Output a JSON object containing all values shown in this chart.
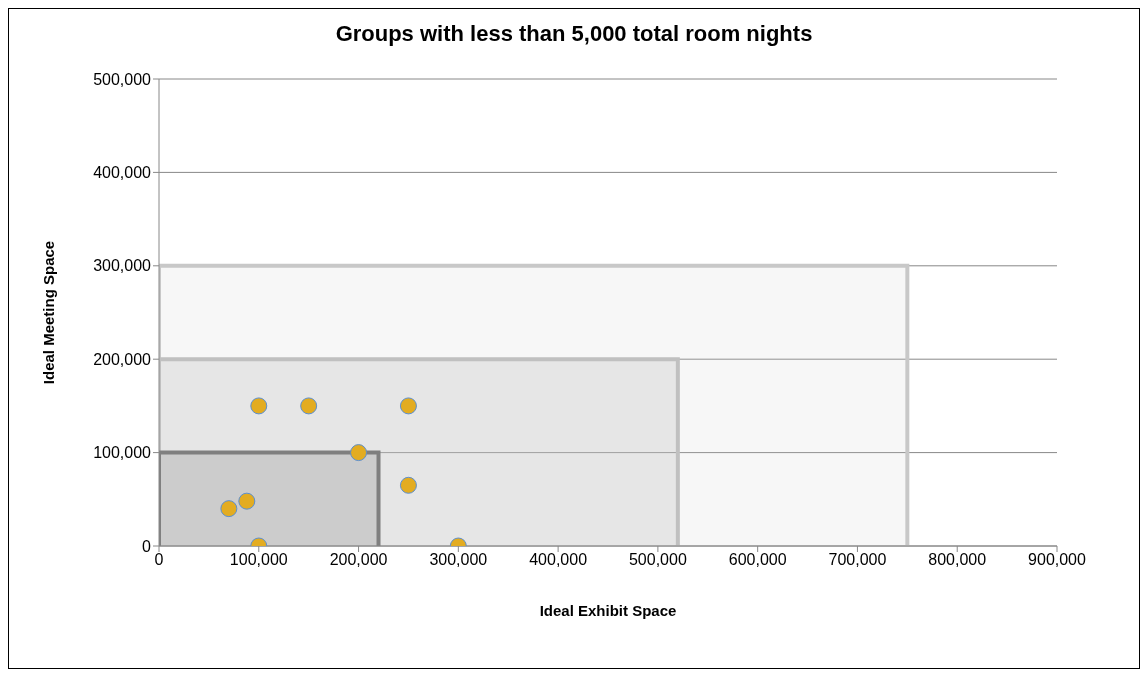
{
  "chart_data": {
    "type": "scatter",
    "title": "Groups with less than 5,000 total room nights",
    "xlabel": "Ideal Exhibit Space",
    "ylabel": "Ideal Meeting Space",
    "xlim": [
      0,
      900000
    ],
    "xticks": [
      {
        "value": 0,
        "label": "0"
      },
      {
        "value": 100000,
        "label": "100,000"
      },
      {
        "value": 200000,
        "label": "200,000"
      },
      {
        "value": 300000,
        "label": "300,000"
      },
      {
        "value": 400000,
        "label": "400,000"
      },
      {
        "value": 500000,
        "label": "500,000"
      },
      {
        "value": 600000,
        "label": "600,000"
      },
      {
        "value": 700000,
        "label": "700,000"
      },
      {
        "value": 800000,
        "label": "800,000"
      },
      {
        "value": 900000,
        "label": "900,000"
      }
    ],
    "ylim": [
      0,
      500000
    ],
    "yticks": [
      {
        "value": 0,
        "label": "0"
      },
      {
        "value": 100000,
        "label": "100,000"
      },
      {
        "value": 200000,
        "label": "200,000"
      },
      {
        "value": 300000,
        "label": "300,000"
      },
      {
        "value": 400000,
        "label": "400,000"
      },
      {
        "value": 500000,
        "label": "500,000"
      }
    ],
    "grid": "y",
    "series": [
      {
        "type": "area",
        "marker": "none",
        "color": "#c8c8c8",
        "x": [
          0,
          0,
          750000,
          750000
        ],
        "values": [
          0,
          300000,
          300000,
          0
        ]
      },
      {
        "type": "area",
        "marker": "none",
        "color": "#c0c0c0",
        "x": [
          0,
          0,
          520000,
          520000
        ],
        "values": [
          0,
          200000,
          200000,
          0
        ]
      },
      {
        "type": "area",
        "marker": "none",
        "color": "#7f7f7f",
        "x": [
          0,
          0,
          220000,
          220000
        ],
        "values": [
          0,
          100000,
          100000,
          0
        ]
      },
      {
        "marker": "circle",
        "color": "#e3ac21",
        "x": [
          70000,
          88000,
          100000,
          100000,
          150000,
          200000,
          250000,
          250000,
          300000
        ],
        "values": [
          40000,
          48000,
          150000,
          0,
          150000,
          100000,
          150000,
          65000,
          0
        ]
      }
    ]
  }
}
